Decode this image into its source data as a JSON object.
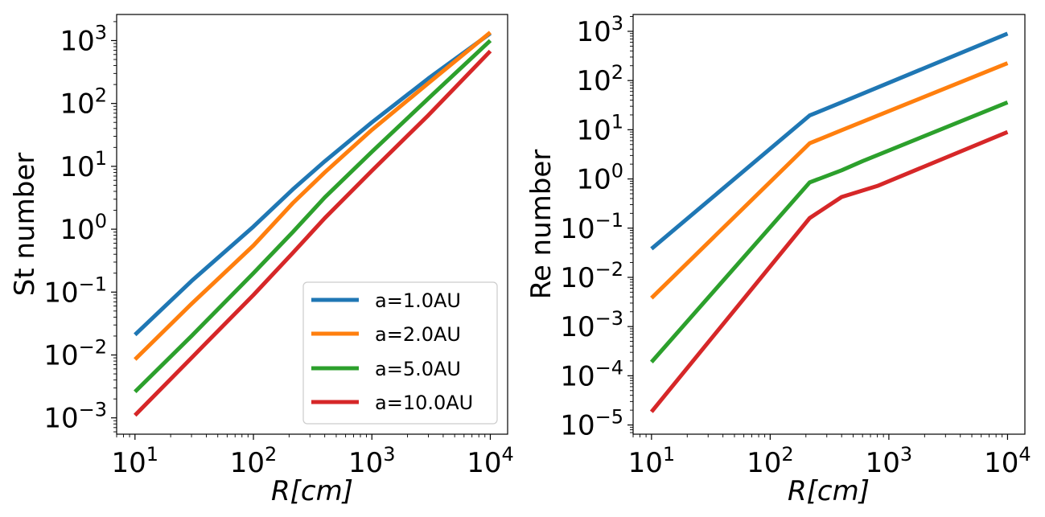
{
  "chart_data": [
    {
      "type": "line",
      "title": "",
      "xscale": "log",
      "yscale": "log",
      "xlabel": "R[cm]",
      "ylabel": "St number",
      "xlim": [
        7,
        14000
      ],
      "ylim": [
        0.00055,
        2600
      ],
      "x_tick_exponents": [
        1,
        2,
        3,
        4
      ],
      "y_tick_exponents": [
        -3,
        -2,
        -1,
        0,
        1,
        2,
        3
      ],
      "tick_base": "10",
      "legend": {
        "location": "lower-right"
      },
      "series": [
        {
          "name": "a=1.0AU",
          "color": "#1f77b4",
          "x": [
            10,
            30,
            100,
            215,
            400,
            1000,
            3000,
            10000
          ],
          "y": [
            0.021,
            0.15,
            1.1,
            4.3,
            12,
            50,
            250,
            1300
          ]
        },
        {
          "name": "a=2.0AU",
          "color": "#ff7f0e",
          "x": [
            10,
            30,
            100,
            215,
            400,
            1000,
            3000,
            10000
          ],
          "y": [
            0.0085,
            0.065,
            0.55,
            2.6,
            8,
            38,
            210,
            1350
          ]
        },
        {
          "name": "a=5.0AU",
          "color": "#2ca02c",
          "x": [
            10,
            30,
            100,
            215,
            400,
            1000,
            3000,
            10000
          ],
          "y": [
            0.0026,
            0.02,
            0.2,
            0.9,
            3.2,
            17,
            120,
            1000
          ]
        },
        {
          "name": "a=10.0AU",
          "color": "#d62728",
          "x": [
            10,
            30,
            100,
            215,
            400,
            1000,
            3000,
            10000
          ],
          "y": [
            0.0011,
            0.009,
            0.09,
            0.42,
            1.5,
            8.5,
            65,
            680
          ]
        }
      ]
    },
    {
      "type": "line",
      "title": "",
      "xscale": "log",
      "yscale": "log",
      "xlabel": "R[cm]",
      "ylabel": "Re number",
      "xlim": [
        7,
        14000
      ],
      "ylim": [
        6.5e-06,
        2200
      ],
      "x_tick_exponents": [
        1,
        2,
        3,
        4
      ],
      "y_tick_exponents": [
        -5,
        -4,
        -3,
        -2,
        -1,
        0,
        1,
        2,
        3
      ],
      "tick_base": "10",
      "series": [
        {
          "name": "a=1.0AU",
          "color": "#1f77b4",
          "x": [
            10,
            215,
            400,
            10000
          ],
          "y": [
            0.038,
            19.5,
            36,
            900
          ]
        },
        {
          "name": "a=2.0AU",
          "color": "#ff7f0e",
          "x": [
            10,
            215,
            400,
            10000
          ],
          "y": [
            0.0038,
            5.3,
            9.8,
            225
          ]
        },
        {
          "name": "a=5.0AU",
          "color": "#2ca02c",
          "x": [
            10,
            215,
            400,
            600,
            10000
          ],
          "y": [
            0.00019,
            0.85,
            1.5,
            2.3,
            36
          ]
        },
        {
          "name": "a=10.0AU",
          "color": "#d62728",
          "x": [
            10,
            215,
            400,
            800,
            10000
          ],
          "y": [
            1.85e-05,
            0.16,
            0.43,
            0.72,
            9
          ]
        }
      ]
    }
  ]
}
